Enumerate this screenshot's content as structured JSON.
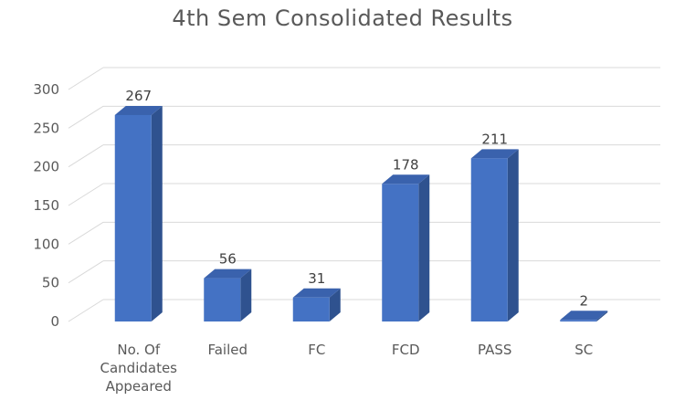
{
  "chart_data": {
    "type": "bar",
    "title": "4th Sem Consolidated Results",
    "categories": [
      [
        "No. Of",
        "Candidates",
        "Appeared"
      ],
      [
        "Failed"
      ],
      [
        "FC"
      ],
      [
        "FCD"
      ],
      [
        "PASS"
      ],
      [
        "SC"
      ]
    ],
    "values": [
      267,
      56,
      31,
      178,
      211,
      2
    ],
    "data_labels": [
      "267",
      "56",
      "31",
      "178",
      "211",
      "2"
    ],
    "ylim": [
      0,
      300
    ],
    "yticks": [
      "0",
      "50",
      "100",
      "150",
      "200",
      "250",
      "300"
    ],
    "grid": true,
    "style": "3d-column",
    "colors": {
      "bar_front": "#4472c4",
      "bar_side": "#2f528f",
      "bar_top": "#3a62ad",
      "grid": "#d9d9d9"
    }
  }
}
